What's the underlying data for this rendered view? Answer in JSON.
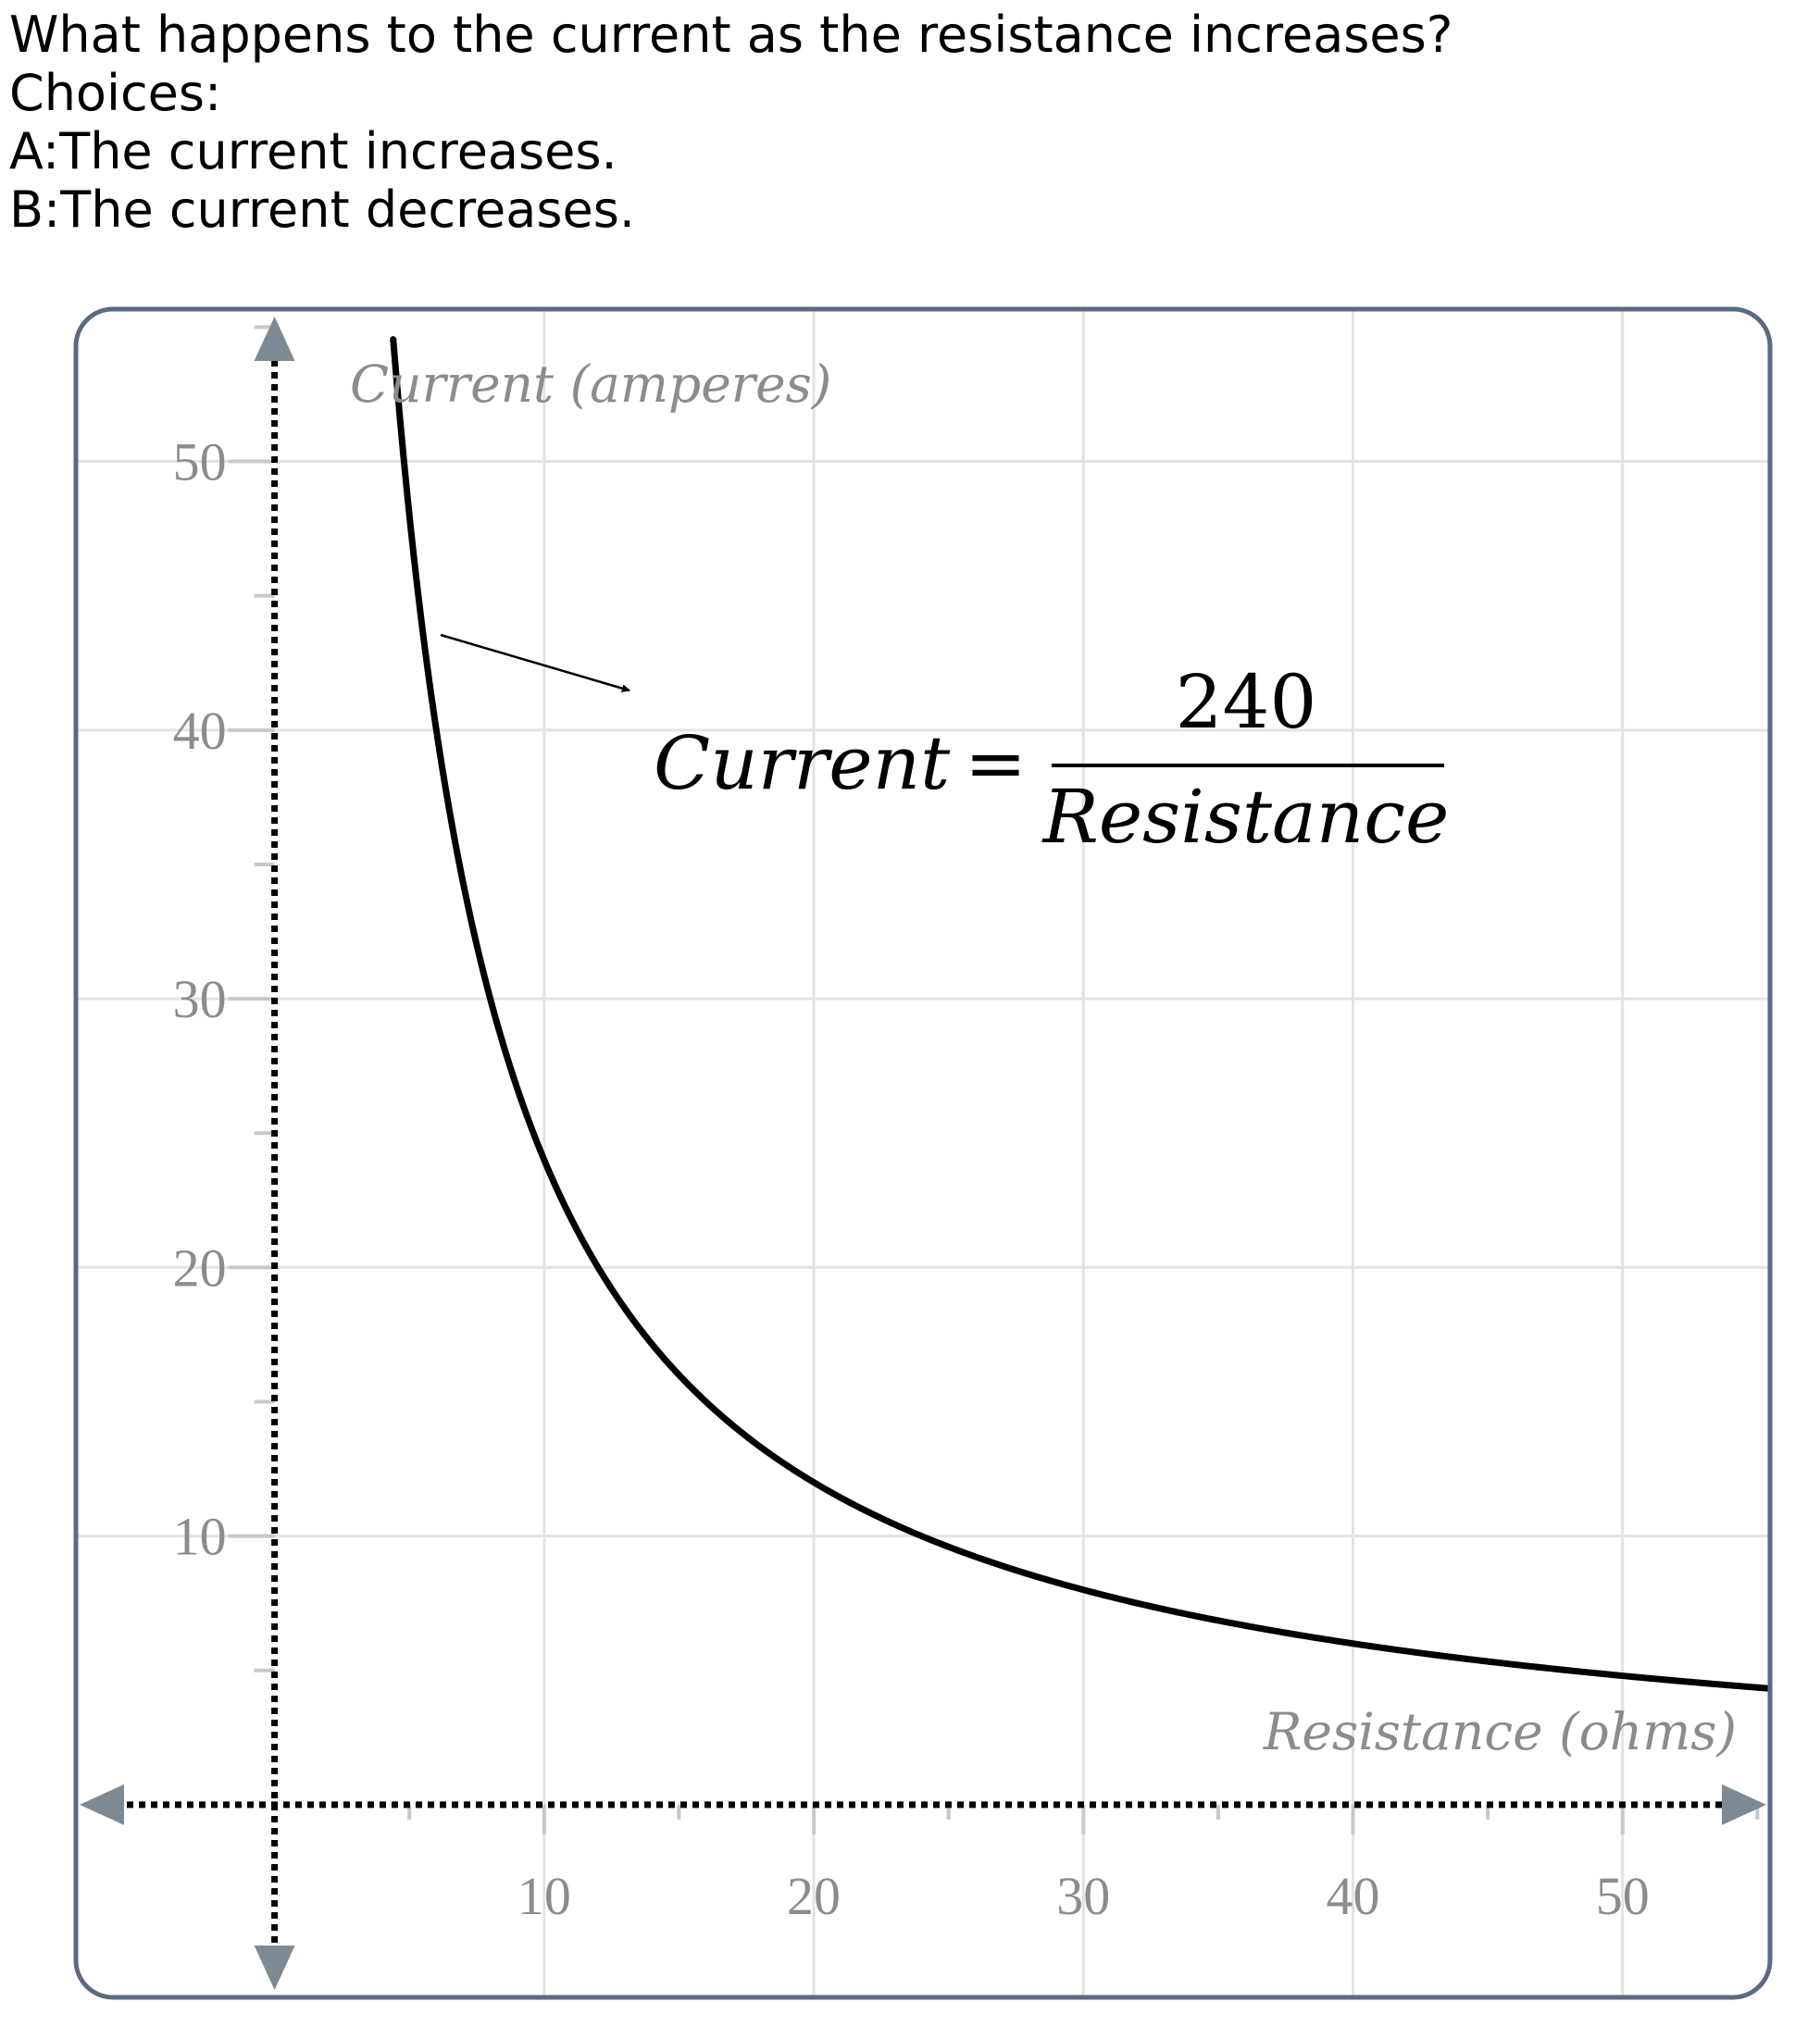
{
  "question": {
    "prompt": "What happens to the current as the resistance increases?",
    "choices_label": "Choices:",
    "choices": [
      {
        "letter": "A",
        "text": "The current increases."
      },
      {
        "letter": "B",
        "text": "The current decreases."
      }
    ]
  },
  "chart_data": {
    "type": "line",
    "title": "",
    "xlabel": "Resistance (ohms)",
    "ylabel": "Current (amperes)",
    "xlim": [
      -7.3,
      55.4
    ],
    "ylim": [
      -7.1,
      55.6
    ],
    "x_ticks": [
      10,
      20,
      30,
      40,
      50
    ],
    "y_ticks": [
      10,
      20,
      30,
      40,
      50
    ],
    "minor_tick_step": 5,
    "grid": true,
    "series": [
      {
        "name": "",
        "function": "Current = 240 / Resistance",
        "numerator": 240,
        "x_start": 4.4,
        "x_end": 55.4
      }
    ],
    "annotation": {
      "lhs": "Current",
      "equals": "=",
      "numerator": "240",
      "denominator": "Resistance"
    },
    "colors": {
      "curve": "#000000",
      "grid": "#e3e3e3",
      "axis": "#000000",
      "frame": "#5a6b80",
      "tick_label": "#8c8c8c",
      "arrowhead": "#7d8a93"
    }
  }
}
